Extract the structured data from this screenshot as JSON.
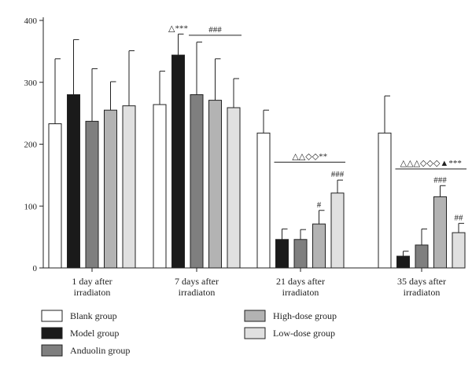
{
  "chart_data": {
    "type": "bar",
    "title": "",
    "xlabel": "",
    "ylabel": "",
    "ylim": [
      0,
      400
    ],
    "yticks": [
      0,
      100,
      200,
      300,
      400
    ],
    "categories": [
      {
        "line1": "1 day after",
        "line2": "irradiaton"
      },
      {
        "line1": "7 days after",
        "line2": "irradiaton"
      },
      {
        "line1": "21 days after",
        "line2": "irradiaton"
      },
      {
        "line1": "35 days after",
        "line2": "irradiaton"
      }
    ],
    "series": [
      {
        "name": "Blank group",
        "color": "#ffffff",
        "values": [
          233,
          264,
          218,
          218
        ],
        "errors": [
          105,
          54,
          37,
          60
        ]
      },
      {
        "name": "Model group",
        "color": "#1a1a1a",
        "values": [
          280,
          344,
          46,
          19
        ],
        "errors": [
          89,
          34,
          17,
          8
        ]
      },
      {
        "name": "Anduolin group",
        "color": "#7f7f7f",
        "values": [
          237,
          280,
          46,
          37
        ],
        "errors": [
          85,
          85,
          16,
          26
        ]
      },
      {
        "name": "High-dose group",
        "color": "#b3b3b3",
        "values": [
          255,
          271,
          71,
          115
        ],
        "errors": [
          46,
          67,
          22,
          18
        ]
      },
      {
        "name": "Low-dose group",
        "color": "#e0e0e0",
        "values": [
          262,
          259,
          121,
          57
        ],
        "errors": [
          89,
          47,
          21,
          15
        ]
      }
    ],
    "legend_placement": "bottom",
    "grid": false,
    "annotations": {
      "significance_lines": [
        {
          "category": 1,
          "from_series": 2,
          "to_series": 4,
          "y": 376,
          "label": "###"
        },
        {
          "category": 2,
          "from_series": 1,
          "to_series": 4,
          "y": 171,
          "label": "△△◇◇**"
        },
        {
          "category": 3,
          "from_series": 1,
          "to_series": 4,
          "y": 160,
          "label": "△△△◇◇◇▲***"
        }
      ],
      "bar_labels": [
        {
          "category": 1,
          "series": 1,
          "label": "△***"
        },
        {
          "category": 2,
          "series": 3,
          "label": "#"
        },
        {
          "category": 2,
          "series": 4,
          "label": "###"
        },
        {
          "category": 3,
          "series": 3,
          "label": "###"
        },
        {
          "category": 3,
          "series": 4,
          "label": "##"
        }
      ]
    }
  }
}
